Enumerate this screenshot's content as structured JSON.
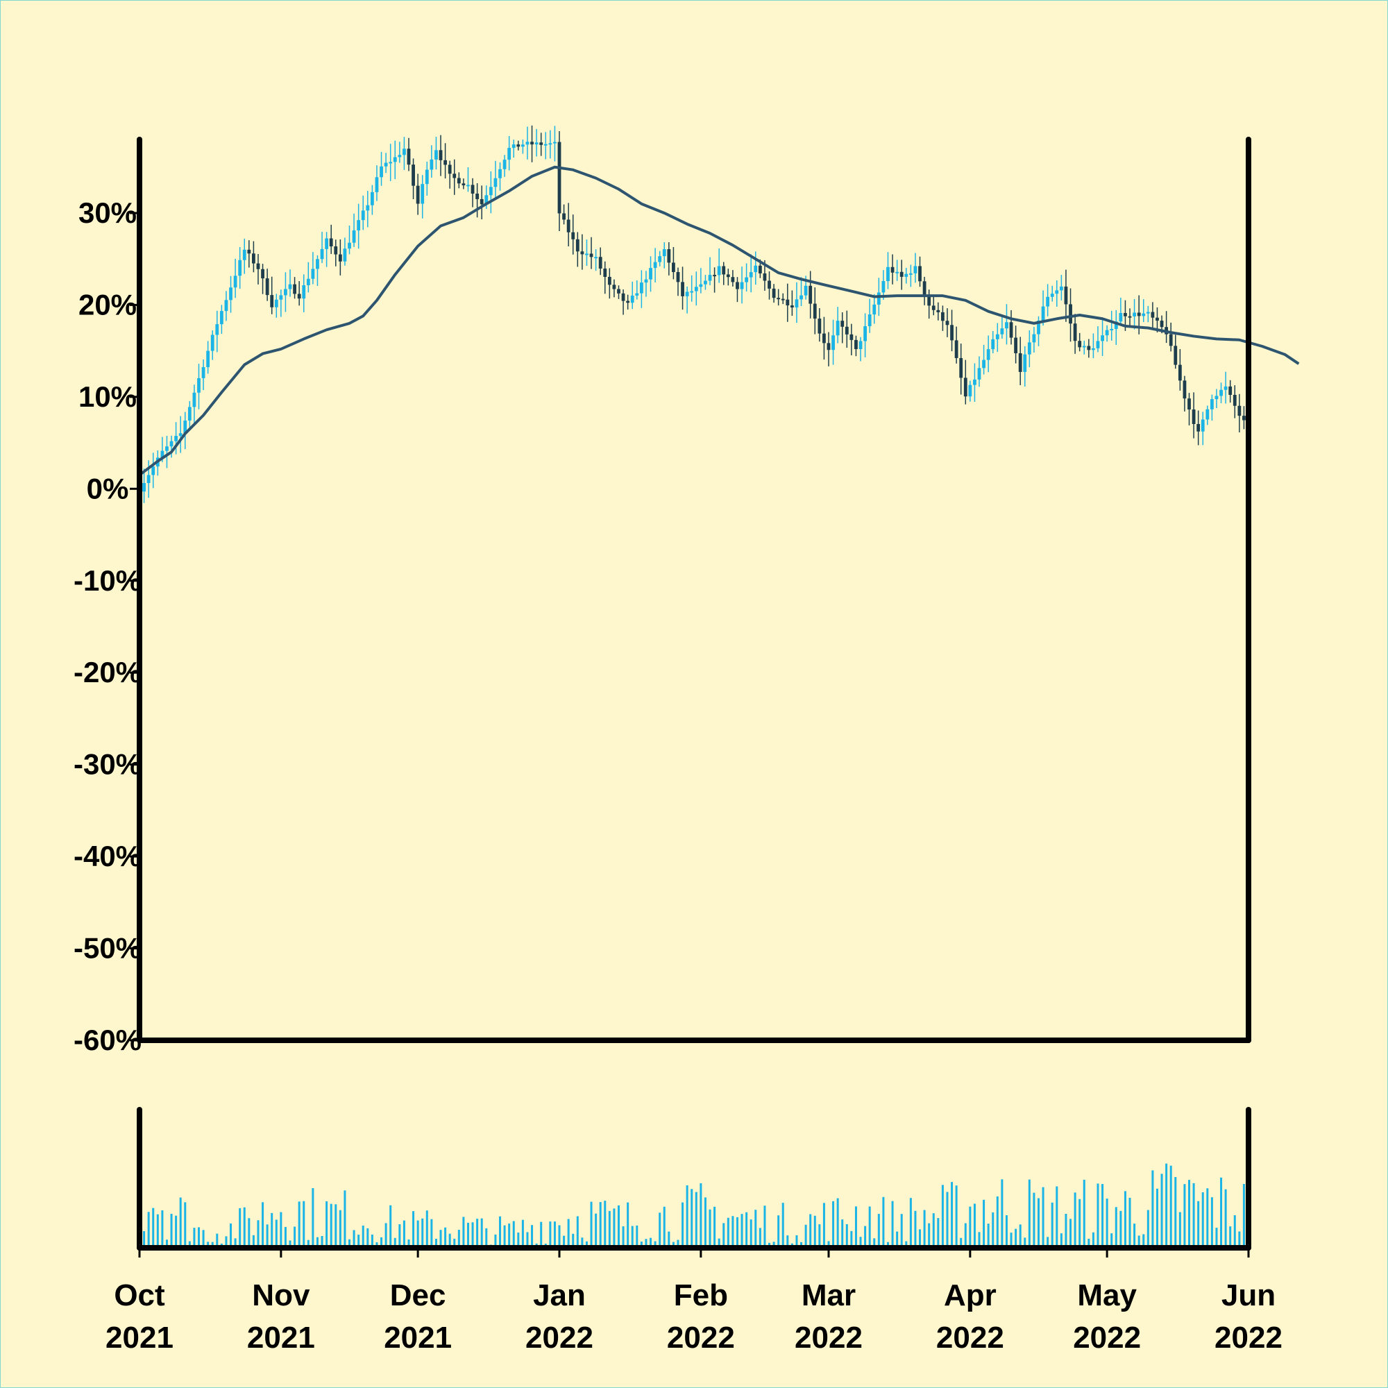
{
  "chart_data": {
    "type": "candlestick",
    "title": "",
    "xlabel": "",
    "ylabel": "",
    "ylim": [
      -60,
      38
    ],
    "y_ticks": [
      "30%",
      "20%",
      "10%",
      "0%",
      "-10%",
      "-20%",
      "-30%",
      "-40%",
      "-50%",
      "-60%"
    ],
    "y_tick_values": [
      30,
      20,
      10,
      0,
      -10,
      -20,
      -30,
      -40,
      -50,
      -60
    ],
    "x_range": [
      "2021-10-01",
      "2022-06-01"
    ],
    "x_ticks": [
      {
        "date": "2021-10-01",
        "month": "Oct",
        "year": "2021"
      },
      {
        "date": "2021-11-01",
        "month": "Nov",
        "year": "2021"
      },
      {
        "date": "2021-12-01",
        "month": "Dec",
        "year": "2021"
      },
      {
        "date": "2022-01-01",
        "month": "Jan",
        "year": "2022"
      },
      {
        "date": "2022-02-01",
        "month": "Feb",
        "year": "2022"
      },
      {
        "date": "2022-03-01",
        "month": "Mar",
        "year": "2022"
      },
      {
        "date": "2022-04-01",
        "month": "Apr",
        "year": "2022"
      },
      {
        "date": "2022-05-01",
        "month": "May",
        "year": "2022"
      },
      {
        "date": "2022-06-01",
        "month": "Jun",
        "year": "2022"
      }
    ],
    "close_path": [
      [
        "2021-10-01",
        0
      ],
      [
        "2021-10-06",
        4
      ],
      [
        "2021-10-10",
        6
      ],
      [
        "2021-10-14",
        12
      ],
      [
        "2021-10-18",
        18
      ],
      [
        "2021-10-21",
        22
      ],
      [
        "2021-10-24",
        26
      ],
      [
        "2021-10-27",
        24
      ],
      [
        "2021-10-30",
        20
      ],
      [
        "2021-11-03",
        22
      ],
      [
        "2021-11-05",
        21
      ],
      [
        "2021-11-08",
        24
      ],
      [
        "2021-11-11",
        27
      ],
      [
        "2021-11-14",
        25
      ],
      [
        "2021-11-17",
        28
      ],
      [
        "2021-11-20",
        31
      ],
      [
        "2021-11-23",
        35
      ],
      [
        "2021-11-26",
        36
      ],
      [
        "2021-11-28",
        37
      ],
      [
        "2021-12-01",
        31
      ],
      [
        "2021-12-03",
        35
      ],
      [
        "2021-12-05",
        37
      ],
      [
        "2021-12-08",
        34
      ],
      [
        "2021-12-12",
        33
      ],
      [
        "2021-12-15",
        31
      ],
      [
        "2021-12-18",
        34
      ],
      [
        "2021-12-21",
        37
      ],
      [
        "2021-12-24",
        37.5
      ],
      [
        "2021-12-31",
        37.5
      ],
      [
        "2022-01-01",
        30
      ],
      [
        "2022-01-05",
        26
      ],
      [
        "2022-01-09",
        25
      ],
      [
        "2022-01-12",
        22
      ],
      [
        "2022-01-16",
        20
      ],
      [
        "2022-01-20",
        23
      ],
      [
        "2022-01-24",
        26
      ],
      [
        "2022-01-28",
        21
      ],
      [
        "2022-02-01",
        22
      ],
      [
        "2022-02-05",
        24
      ],
      [
        "2022-02-09",
        22
      ],
      [
        "2022-02-13",
        24
      ],
      [
        "2022-02-17",
        21
      ],
      [
        "2022-02-21",
        20
      ],
      [
        "2022-02-24",
        22
      ],
      [
        "2022-02-27",
        17
      ],
      [
        "2022-03-01",
        15
      ],
      [
        "2022-03-03",
        18
      ],
      [
        "2022-03-05",
        17
      ],
      [
        "2022-03-07",
        15
      ],
      [
        "2022-03-11",
        20
      ],
      [
        "2022-03-14",
        24
      ],
      [
        "2022-03-17",
        23
      ],
      [
        "2022-03-20",
        24
      ],
      [
        "2022-03-23",
        20
      ],
      [
        "2022-03-27",
        18
      ],
      [
        "2022-03-31",
        10
      ],
      [
        "2022-04-03",
        13
      ],
      [
        "2022-04-06",
        16
      ],
      [
        "2022-04-09",
        18
      ],
      [
        "2022-04-12",
        13
      ],
      [
        "2022-04-15",
        17
      ],
      [
        "2022-04-18",
        21
      ],
      [
        "2022-04-21",
        22
      ],
      [
        "2022-04-24",
        16
      ],
      [
        "2022-04-27",
        15
      ],
      [
        "2022-05-01",
        17
      ],
      [
        "2022-05-04",
        19
      ],
      [
        "2022-05-10",
        19
      ],
      [
        "2022-05-14",
        17
      ],
      [
        "2022-05-18",
        10
      ],
      [
        "2022-05-21",
        6
      ],
      [
        "2022-05-24",
        10
      ],
      [
        "2022-05-27",
        11
      ],
      [
        "2022-05-30",
        8
      ],
      [
        "2022-06-03",
        5
      ],
      [
        "2022-06-06",
        7
      ],
      [
        "2022-06-08",
        6
      ],
      [
        "2022-06-11",
        8
      ],
      [
        "2022-06-12",
        8
      ]
    ],
    "moving_average": [
      [
        "2021-10-01",
        1.5
      ],
      [
        "2021-10-05",
        3
      ],
      [
        "2021-10-08",
        4
      ],
      [
        "2021-10-11",
        6
      ],
      [
        "2021-10-15",
        8
      ],
      [
        "2021-10-19",
        10.5
      ],
      [
        "2021-10-24",
        13.5
      ],
      [
        "2021-10-28",
        14.7
      ],
      [
        "2021-11-01",
        15.2
      ],
      [
        "2021-11-06",
        16.3
      ],
      [
        "2021-11-11",
        17.3
      ],
      [
        "2021-11-16",
        18
      ],
      [
        "2021-11-19",
        18.8
      ],
      [
        "2021-11-22",
        20.5
      ],
      [
        "2021-11-26",
        23.3
      ],
      [
        "2021-12-01",
        26.4
      ],
      [
        "2021-12-06",
        28.6
      ],
      [
        "2021-12-11",
        29.5
      ],
      [
        "2021-12-16",
        31
      ],
      [
        "2021-12-21",
        32.4
      ],
      [
        "2021-12-26",
        34
      ],
      [
        "2021-12-31",
        35
      ],
      [
        "2022-01-04",
        34.7
      ],
      [
        "2022-01-09",
        33.8
      ],
      [
        "2022-01-14",
        32.6
      ],
      [
        "2022-01-19",
        31
      ],
      [
        "2022-01-24",
        30
      ],
      [
        "2022-01-29",
        28.8
      ],
      [
        "2022-02-03",
        27.8
      ],
      [
        "2022-02-08",
        26.5
      ],
      [
        "2022-02-13",
        25
      ],
      [
        "2022-02-18",
        23.5
      ],
      [
        "2022-02-23",
        22.8
      ],
      [
        "2022-02-28",
        22.2
      ],
      [
        "2022-03-06",
        21.5
      ],
      [
        "2022-03-11",
        20.9
      ],
      [
        "2022-03-16",
        21
      ],
      [
        "2022-03-21",
        21
      ],
      [
        "2022-03-26",
        21
      ],
      [
        "2022-03-31",
        20.5
      ],
      [
        "2022-04-05",
        19.3
      ],
      [
        "2022-04-10",
        18.5
      ],
      [
        "2022-04-15",
        18
      ],
      [
        "2022-04-20",
        18.5
      ],
      [
        "2022-04-25",
        18.9
      ],
      [
        "2022-04-30",
        18.5
      ],
      [
        "2022-05-05",
        17.7
      ],
      [
        "2022-05-10",
        17.5
      ],
      [
        "2022-05-15",
        17
      ],
      [
        "2022-05-20",
        16.6
      ],
      [
        "2022-05-25",
        16.3
      ],
      [
        "2022-05-30",
        16.2
      ],
      [
        "2022-06-04",
        15.5
      ],
      [
        "2022-06-09",
        14.6
      ],
      [
        "2022-06-12",
        13.6
      ]
    ],
    "volume_envelope": [
      [
        "2021-10-01",
        0.88
      ],
      [
        "2021-10-08",
        0.62
      ],
      [
        "2021-10-15",
        0.22
      ],
      [
        "2021-10-22",
        0.3
      ],
      [
        "2021-11-01",
        0.66
      ],
      [
        "2021-11-08",
        0.52
      ],
      [
        "2021-11-15",
        0.5
      ],
      [
        "2021-11-22",
        0.38
      ],
      [
        "2021-12-01",
        0.32
      ],
      [
        "2021-12-08",
        0.34
      ],
      [
        "2021-12-15",
        0.28
      ],
      [
        "2021-12-22",
        0.26
      ],
      [
        "2022-01-01",
        0.42
      ],
      [
        "2022-01-08",
        0.48
      ],
      [
        "2022-01-15",
        0.4
      ],
      [
        "2022-01-22",
        0.46
      ],
      [
        "2022-02-01",
        0.56
      ],
      [
        "2022-02-08",
        0.46
      ],
      [
        "2022-02-15",
        0.4
      ],
      [
        "2022-02-22",
        0.36
      ],
      [
        "2022-03-01",
        0.44
      ],
      [
        "2022-03-08",
        0.52
      ],
      [
        "2022-03-15",
        0.42
      ],
      [
        "2022-03-22",
        0.48
      ],
      [
        "2022-04-01",
        0.62
      ],
      [
        "2022-04-08",
        0.66
      ],
      [
        "2022-04-15",
        0.6
      ],
      [
        "2022-04-22",
        0.56
      ],
      [
        "2022-05-01",
        0.62
      ],
      [
        "2022-05-08",
        0.6
      ],
      [
        "2022-05-15",
        0.78
      ],
      [
        "2022-05-22",
        0.68
      ],
      [
        "2022-06-01",
        0.6
      ],
      [
        "2022-06-12",
        0.56
      ]
    ],
    "grid": false,
    "legend": "none",
    "colors": {
      "background": "#fef7cd",
      "border": "#7fd8d0",
      "candle_up": "#1ab4e6",
      "candle_down": "#1d3d4c",
      "moving_average": "#2e5570",
      "volume": "#1ab4e6",
      "axis": "#000000"
    }
  }
}
